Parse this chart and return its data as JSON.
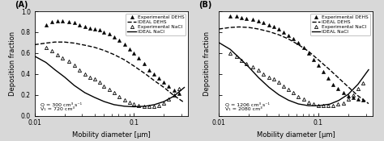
{
  "panel_A": {
    "label": "(A)",
    "annotation": "Q = 300 cm³ s⁻¹\nV₁ = 720 cm³",
    "exp_DEHS_x": [
      0.013,
      0.015,
      0.017,
      0.019,
      0.022,
      0.025,
      0.028,
      0.032,
      0.036,
      0.04,
      0.045,
      0.05,
      0.056,
      0.063,
      0.071,
      0.08,
      0.09,
      0.1,
      0.112,
      0.126,
      0.141,
      0.158,
      0.178,
      0.2,
      0.224,
      0.251,
      0.282
    ],
    "exp_DEHS_y": [
      0.87,
      0.9,
      0.91,
      0.91,
      0.9,
      0.89,
      0.87,
      0.85,
      0.84,
      0.83,
      0.82,
      0.8,
      0.78,
      0.75,
      0.72,
      0.68,
      0.64,
      0.6,
      0.55,
      0.5,
      0.44,
      0.4,
      0.36,
      0.32,
      0.28,
      0.24,
      0.21
    ],
    "ideal_DEHS_x": [
      0.01,
      0.013,
      0.016,
      0.02,
      0.025,
      0.032,
      0.04,
      0.05,
      0.063,
      0.08,
      0.1,
      0.13,
      0.16,
      0.2,
      0.25,
      0.32
    ],
    "ideal_DEHS_y": [
      0.68,
      0.695,
      0.705,
      0.705,
      0.695,
      0.675,
      0.655,
      0.625,
      0.585,
      0.535,
      0.475,
      0.4,
      0.335,
      0.27,
      0.195,
      0.125
    ],
    "exp_NaCl_x": [
      0.013,
      0.015,
      0.017,
      0.019,
      0.022,
      0.025,
      0.028,
      0.032,
      0.036,
      0.04,
      0.045,
      0.05,
      0.056,
      0.063,
      0.071,
      0.08,
      0.09,
      0.1,
      0.112,
      0.126,
      0.141,
      0.158,
      0.178,
      0.2,
      0.224,
      0.251,
      0.282
    ],
    "exp_NaCl_y": [
      0.65,
      0.62,
      0.58,
      0.55,
      0.52,
      0.48,
      0.44,
      0.4,
      0.37,
      0.35,
      0.32,
      0.28,
      0.25,
      0.22,
      0.18,
      0.15,
      0.13,
      0.11,
      0.1,
      0.09,
      0.09,
      0.09,
      0.1,
      0.12,
      0.16,
      0.2,
      0.26
    ],
    "ideal_NaCl_x": [
      0.01,
      0.013,
      0.016,
      0.02,
      0.025,
      0.032,
      0.04,
      0.05,
      0.063,
      0.08,
      0.1,
      0.13,
      0.16,
      0.2,
      0.25,
      0.32
    ],
    "ideal_NaCl_y": [
      0.57,
      0.51,
      0.44,
      0.37,
      0.29,
      0.22,
      0.175,
      0.135,
      0.105,
      0.09,
      0.085,
      0.09,
      0.105,
      0.135,
      0.185,
      0.27
    ]
  },
  "panel_B": {
    "label": "(B)",
    "annotation": "Q = 1206 cm³ s⁻¹\nV₁ = 2080 cm³",
    "exp_DEHS_x": [
      0.013,
      0.015,
      0.017,
      0.019,
      0.022,
      0.025,
      0.028,
      0.032,
      0.036,
      0.04,
      0.045,
      0.05,
      0.056,
      0.063,
      0.071,
      0.08,
      0.09,
      0.1,
      0.112,
      0.126,
      0.141,
      0.158,
      0.178,
      0.2,
      0.224,
      0.251,
      0.282
    ],
    "exp_DEHS_y": [
      0.95,
      0.95,
      0.94,
      0.93,
      0.92,
      0.91,
      0.89,
      0.87,
      0.85,
      0.83,
      0.8,
      0.77,
      0.74,
      0.7,
      0.65,
      0.6,
      0.54,
      0.48,
      0.42,
      0.36,
      0.3,
      0.26,
      0.22,
      0.19,
      0.17,
      0.16,
      0.15
    ],
    "ideal_DEHS_x": [
      0.01,
      0.013,
      0.016,
      0.02,
      0.025,
      0.032,
      0.04,
      0.05,
      0.063,
      0.08,
      0.1,
      0.13,
      0.16,
      0.2,
      0.25,
      0.32
    ],
    "ideal_DEHS_y": [
      0.83,
      0.845,
      0.85,
      0.845,
      0.83,
      0.805,
      0.775,
      0.735,
      0.68,
      0.615,
      0.535,
      0.44,
      0.36,
      0.275,
      0.19,
      0.115
    ],
    "exp_NaCl_x": [
      0.013,
      0.015,
      0.017,
      0.019,
      0.022,
      0.025,
      0.028,
      0.032,
      0.036,
      0.04,
      0.045,
      0.05,
      0.056,
      0.063,
      0.071,
      0.08,
      0.09,
      0.1,
      0.112,
      0.126,
      0.141,
      0.158,
      0.178,
      0.2,
      0.224,
      0.251,
      0.282
    ],
    "exp_NaCl_y": [
      0.6,
      0.57,
      0.53,
      0.5,
      0.47,
      0.44,
      0.4,
      0.37,
      0.35,
      0.32,
      0.28,
      0.25,
      0.22,
      0.18,
      0.16,
      0.13,
      0.11,
      0.1,
      0.1,
      0.1,
      0.1,
      0.11,
      0.12,
      0.16,
      0.2,
      0.26,
      0.31
    ],
    "ideal_NaCl_x": [
      0.01,
      0.013,
      0.016,
      0.02,
      0.025,
      0.032,
      0.04,
      0.05,
      0.063,
      0.08,
      0.1,
      0.13,
      0.16,
      0.2,
      0.25,
      0.32
    ],
    "ideal_NaCl_y": [
      0.7,
      0.635,
      0.555,
      0.465,
      0.365,
      0.27,
      0.2,
      0.148,
      0.112,
      0.095,
      0.095,
      0.11,
      0.145,
      0.205,
      0.3,
      0.44
    ]
  },
  "xlim": [
    0.01,
    0.35
  ],
  "ylim": [
    0.0,
    1.0
  ],
  "xlabel": "Mobility diameter [μm]",
  "ylabel": "Deposition fraction",
  "legend_labels": [
    "Experimental DEHS",
    "IDEAL DEHS",
    "Experimental NaCl",
    "IDEAL NaCl"
  ],
  "bg_color": "#d8d8d8",
  "plot_bg_color": "#ffffff",
  "marker_size": 3.0,
  "line_width": 1.0
}
